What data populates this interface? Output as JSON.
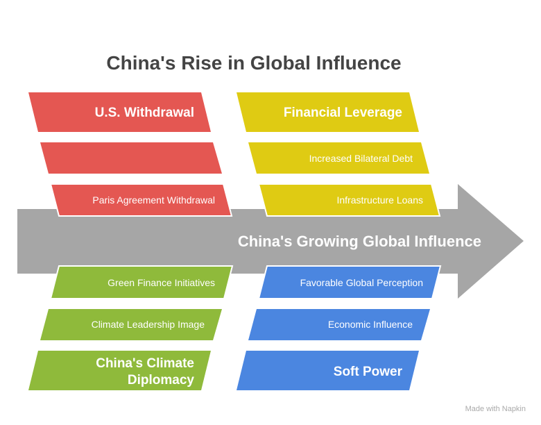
{
  "title": "China's Rise in Global Influence",
  "spine": {
    "label": "China's Growing Global Influence",
    "color": "#a6a6a6"
  },
  "categories": [
    {
      "name": "U.S. Withdrawal",
      "color": "#e45752",
      "causes": [
        "",
        "Paris Agreement Withdrawal"
      ]
    },
    {
      "name": "Financial Leverage",
      "color": "#dfcb13",
      "causes": [
        "Increased Bilateral Debt",
        "Infrastructure Loans"
      ]
    },
    {
      "name_lines": [
        "China's Climate",
        "Diplomacy"
      ],
      "color": "#8fba3b",
      "causes": [
        "Green Finance Initiatives",
        "Climate Leadership Image"
      ]
    },
    {
      "name": "Soft Power",
      "color": "#4b86e0",
      "causes": [
        "Favorable Global Perception",
        "Economic Influence"
      ]
    }
  ],
  "watermark": "Made with Napkin"
}
